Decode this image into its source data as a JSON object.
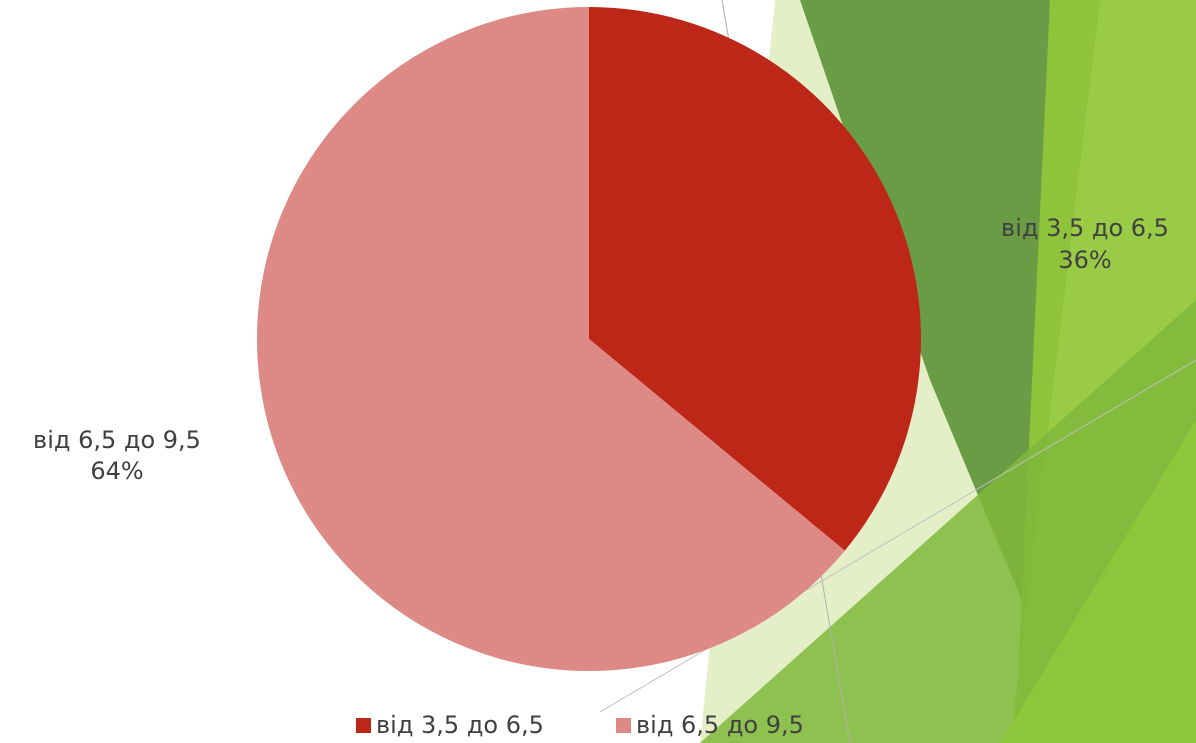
{
  "chart_data": {
    "type": "pie",
    "categories": [
      "від 3,5 до 6,5",
      "від 6,5 до 9,5"
    ],
    "values": [
      36,
      64
    ],
    "value_labels": [
      "36%",
      "64%"
    ],
    "colors": [
      "#bd2718",
      "#dd8985"
    ],
    "legend": "bottom"
  }
}
